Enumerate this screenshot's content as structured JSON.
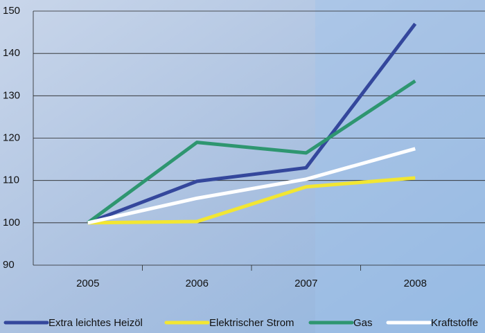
{
  "chart_data": {
    "type": "line",
    "categories": [
      "2005",
      "2006",
      "2007",
      "2008"
    ],
    "series": [
      {
        "name": "Extra leichtes Heizöl",
        "color": "#34479c",
        "values": [
          100,
          109.8,
          113,
          147
        ]
      },
      {
        "name": "Elektrischer Strom",
        "color": "#f2e632",
        "values": [
          100,
          100.3,
          108.5,
          110.6
        ]
      },
      {
        "name": "Gas",
        "color": "#2e9670",
        "values": [
          100,
          119,
          116.5,
          133.5
        ]
      },
      {
        "name": "Kraftstoffe",
        "color": "#ffffff",
        "values": [
          100,
          105.8,
          110.3,
          117.5
        ]
      }
    ],
    "ylim": [
      90,
      150
    ],
    "yticks": [
      90,
      100,
      110,
      120,
      130,
      140,
      150
    ],
    "grid": true
  }
}
